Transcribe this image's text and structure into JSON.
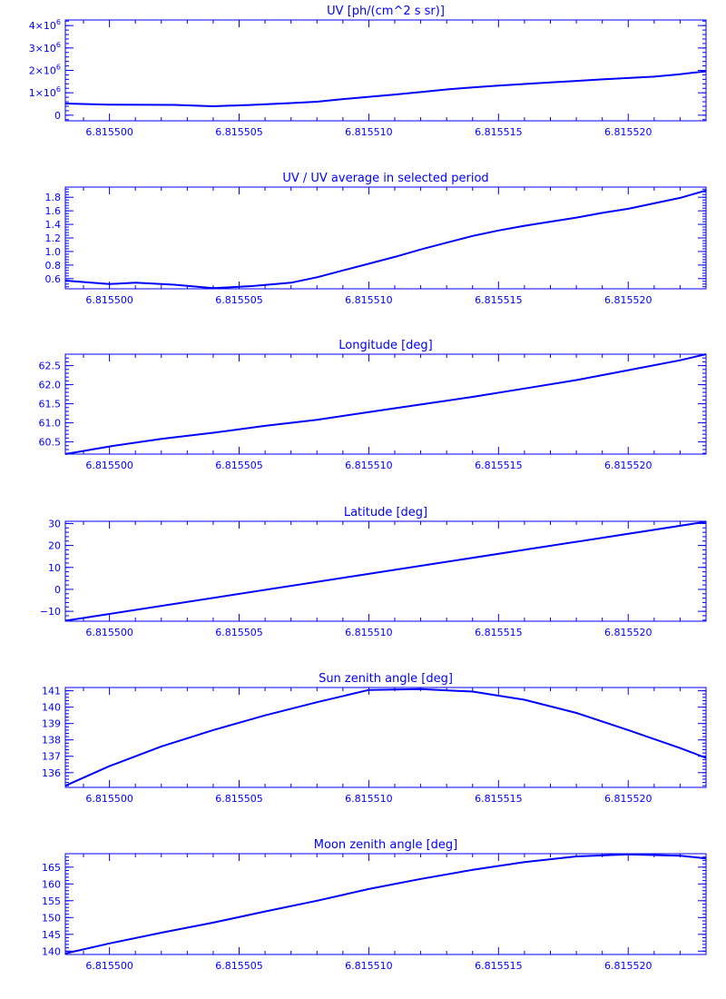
{
  "color": "#0000ff",
  "x_tick_labels": [
    "6.815500",
    "6.815505",
    "6.815510",
    "6.815515",
    "6.815520"
  ],
  "chart_data": [
    {
      "type": "line",
      "title": "UV [ph/(cm^2 s sr)]",
      "xlim": [
        6.8154983,
        6.815523
      ],
      "ylim": [
        -250000,
        4250000
      ],
      "yticks": [
        0,
        1000000,
        2000000,
        3000000,
        4000000
      ],
      "ytick_labels": [
        {
          "text": "0",
          "exp": ""
        },
        {
          "text": "1×10",
          "exp": "6"
        },
        {
          "text": "2×10",
          "exp": "6"
        },
        {
          "text": "3×10",
          "exp": "6"
        },
        {
          "text": "4×10",
          "exp": "6"
        }
      ],
      "x": [
        6.8154983,
        6.8155,
        6.8155025,
        6.815504,
        6.8155055,
        6.815507,
        6.815508,
        6.815509,
        6.81551,
        6.815511,
        6.815512,
        6.815513,
        6.815514,
        6.815515,
        6.815516,
        6.815517,
        6.815518,
        6.815519,
        6.81552,
        6.815521,
        6.815522,
        6.815523
      ],
      "y": [
        520000,
        470000,
        460000,
        400000,
        460000,
        540000,
        600000,
        720000,
        820000,
        920000,
        1030000,
        1150000,
        1240000,
        1320000,
        1390000,
        1460000,
        1530000,
        1600000,
        1660000,
        1720000,
        1830000,
        1960000
      ]
    },
    {
      "type": "line",
      "title": "UV / UV average in selected period",
      "xlim": [
        6.8154983,
        6.815523
      ],
      "ylim": [
        0.45,
        1.95
      ],
      "yticks": [
        0.6,
        0.8,
        1.0,
        1.2,
        1.4,
        1.6,
        1.8
      ],
      "ytick_labels": [
        {
          "text": "0.6",
          "exp": ""
        },
        {
          "text": "0.8",
          "exp": ""
        },
        {
          "text": "1.0",
          "exp": ""
        },
        {
          "text": "1.2",
          "exp": ""
        },
        {
          "text": "1.4",
          "exp": ""
        },
        {
          "text": "1.6",
          "exp": ""
        },
        {
          "text": "1.8",
          "exp": ""
        }
      ],
      "x": [
        6.8154983,
        6.8155,
        6.815501,
        6.8155025,
        6.815504,
        6.8155055,
        6.815507,
        6.815508,
        6.815509,
        6.81551,
        6.815511,
        6.815512,
        6.815513,
        6.815514,
        6.815515,
        6.815516,
        6.815517,
        6.815518,
        6.815519,
        6.81552,
        6.815521,
        6.815522,
        6.815523
      ],
      "y": [
        0.57,
        0.52,
        0.54,
        0.51,
        0.46,
        0.49,
        0.54,
        0.62,
        0.72,
        0.82,
        0.92,
        1.03,
        1.13,
        1.23,
        1.31,
        1.38,
        1.44,
        1.5,
        1.57,
        1.63,
        1.71,
        1.79,
        1.9
      ]
    },
    {
      "type": "line",
      "title": "Longitude [deg]",
      "xlim": [
        6.8154983,
        6.815523
      ],
      "ylim": [
        60.18,
        62.8
      ],
      "yticks": [
        60.5,
        61.0,
        61.5,
        62.0,
        62.5
      ],
      "ytick_labels": [
        {
          "text": "60.5",
          "exp": ""
        },
        {
          "text": "61.0",
          "exp": ""
        },
        {
          "text": "61.5",
          "exp": ""
        },
        {
          "text": "62.0",
          "exp": ""
        },
        {
          "text": "62.5",
          "exp": ""
        }
      ],
      "x": [
        6.8154983,
        6.8155,
        6.815502,
        6.815504,
        6.815506,
        6.815508,
        6.81551,
        6.815512,
        6.815514,
        6.815516,
        6.815518,
        6.81552,
        6.815522,
        6.815523
      ],
      "y": [
        60.18,
        60.38,
        60.58,
        60.74,
        60.92,
        61.08,
        61.28,
        61.48,
        61.68,
        61.9,
        62.12,
        62.38,
        62.64,
        62.8
      ]
    },
    {
      "type": "line",
      "title": "Latitude [deg]",
      "xlim": [
        6.8154983,
        6.815523
      ],
      "ylim": [
        -14.5,
        31
      ],
      "yticks": [
        -10,
        0,
        10,
        20,
        30
      ],
      "ytick_labels": [
        {
          "text": "−10",
          "exp": ""
        },
        {
          "text": "0",
          "exp": ""
        },
        {
          "text": "10",
          "exp": ""
        },
        {
          "text": "20",
          "exp": ""
        },
        {
          "text": "30",
          "exp": ""
        }
      ],
      "x": [
        6.8154983,
        6.815523
      ],
      "y": [
        -14.3,
        30.8
      ]
    },
    {
      "type": "line",
      "title": "Sun zenith angle [deg]",
      "xlim": [
        6.8154983,
        6.815523
      ],
      "ylim": [
        135.1,
        141.2
      ],
      "yticks": [
        136,
        137,
        138,
        139,
        140,
        141
      ],
      "ytick_labels": [
        {
          "text": "136",
          "exp": ""
        },
        {
          "text": "137",
          "exp": ""
        },
        {
          "text": "138",
          "exp": ""
        },
        {
          "text": "139",
          "exp": ""
        },
        {
          "text": "140",
          "exp": ""
        },
        {
          "text": "141",
          "exp": ""
        }
      ],
      "x": [
        6.8154983,
        6.8155,
        6.815502,
        6.815504,
        6.815506,
        6.815508,
        6.81551,
        6.815512,
        6.815514,
        6.815516,
        6.815518,
        6.81552,
        6.815522,
        6.815523
      ],
      "y": [
        135.2,
        136.4,
        137.6,
        138.6,
        139.5,
        140.3,
        141.05,
        141.1,
        140.95,
        140.45,
        139.65,
        138.6,
        137.5,
        136.9
      ]
    },
    {
      "type": "line",
      "title": "Moon zenith angle [deg]",
      "xlim": [
        6.8154983,
        6.815523
      ],
      "ylim": [
        139,
        169
      ],
      "yticks": [
        140,
        145,
        150,
        155,
        160,
        165
      ],
      "ytick_labels": [
        {
          "text": "140",
          "exp": ""
        },
        {
          "text": "145",
          "exp": ""
        },
        {
          "text": "150",
          "exp": ""
        },
        {
          "text": "155",
          "exp": ""
        },
        {
          "text": "160",
          "exp": ""
        },
        {
          "text": "165",
          "exp": ""
        }
      ],
      "x": [
        6.8154983,
        6.8155,
        6.815502,
        6.815504,
        6.815506,
        6.815508,
        6.81551,
        6.815512,
        6.815514,
        6.815516,
        6.815518,
        6.81552,
        6.815522,
        6.815523
      ],
      "y": [
        139.3,
        142.3,
        145.5,
        148.5,
        151.8,
        155.0,
        158.5,
        161.5,
        164.2,
        166.5,
        168.2,
        168.8,
        168.4,
        167.6
      ]
    }
  ]
}
